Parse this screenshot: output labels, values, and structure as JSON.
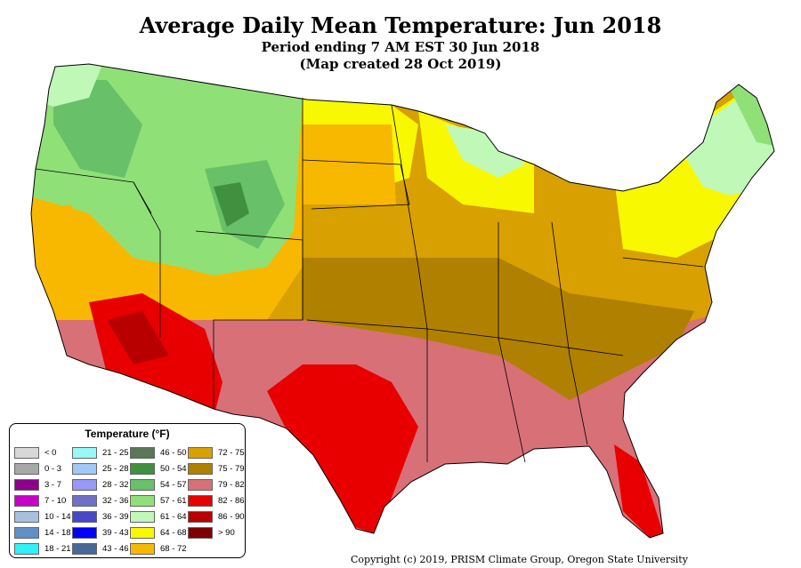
{
  "header": {
    "title": "Average Daily Mean Temperature: Jun 2018",
    "subtitle": "Period ending 7 AM EST 30 Jun 2018",
    "created": "(Map created 28 Oct 2019)"
  },
  "legend": {
    "title": "Temperature (°F)",
    "items": [
      {
        "label": "< 0",
        "color": "#d8d8d8"
      },
      {
        "label": "0 - 3",
        "color": "#a8a8a8"
      },
      {
        "label": "3 - 7",
        "color": "#8c008c"
      },
      {
        "label": "7 - 10",
        "color": "#c800c8"
      },
      {
        "label": "10 - 14",
        "color": "#a8c0e0"
      },
      {
        "label": "14 - 18",
        "color": "#6090c8"
      },
      {
        "label": "18 - 21",
        "color": "#30f0f8"
      },
      {
        "label": "21 - 25",
        "color": "#98f8f8"
      },
      {
        "label": "25 - 28",
        "color": "#a0c8f8"
      },
      {
        "label": "28 - 32",
        "color": "#9898f8"
      },
      {
        "label": "32 - 36",
        "color": "#7070c8"
      },
      {
        "label": "36 - 39",
        "color": "#4848c8"
      },
      {
        "label": "39 - 43",
        "color": "#0000f8"
      },
      {
        "label": "43 - 46",
        "color": "#486898"
      },
      {
        "label": "46 - 50",
        "color": "#587858"
      },
      {
        "label": "50 - 54",
        "color": "#409040"
      },
      {
        "label": "54 - 57",
        "color": "#68c068"
      },
      {
        "label": "57 - 61",
        "color": "#90e078"
      },
      {
        "label": "61 - 64",
        "color": "#c0f8b8"
      },
      {
        "label": "64 - 68",
        "color": "#f8f800"
      },
      {
        "label": "68 - 72",
        "color": "#f8b800"
      },
      {
        "label": "72 - 75",
        "color": "#d8a000"
      },
      {
        "label": "75 - 79",
        "color": "#b08000"
      },
      {
        "label": "79 - 82",
        "color": "#d87078"
      },
      {
        "label": "82 - 86",
        "color": "#e80000"
      },
      {
        "label": "86 - 90",
        "color": "#b80000"
      },
      {
        "label": "> 90",
        "color": "#800000"
      }
    ]
  },
  "footer": {
    "copyright": "Copyright (c) 2019, PRISM Climate Group, Oregon State University"
  }
}
